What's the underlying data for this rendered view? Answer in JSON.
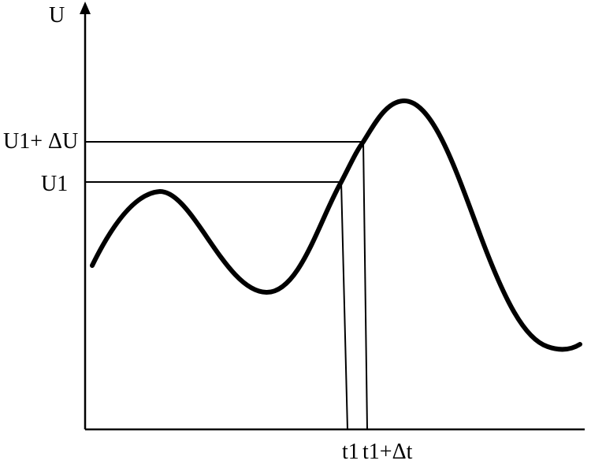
{
  "labels": {
    "y_axis": "U",
    "u1_plus_du": "U1+ ΔU",
    "u1": "U1",
    "t1": "t1",
    "t1_plus_dt": "t1+Δt"
  },
  "colors": {
    "ink": "#000000",
    "background": "#ffffff"
  }
}
